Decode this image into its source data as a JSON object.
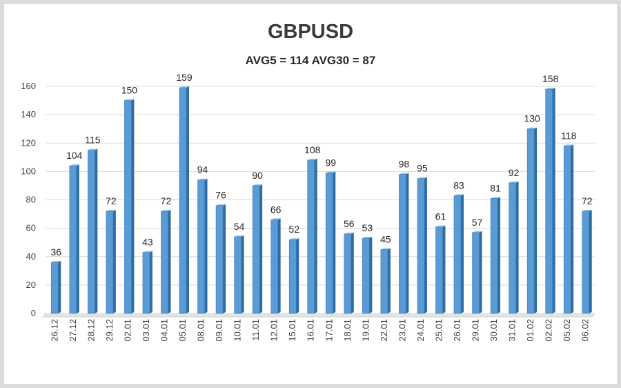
{
  "chart_data": {
    "type": "bar",
    "title": "GBPUSD",
    "subtitle": "AVG5 = 114 AVG30 = 87",
    "categories": [
      "26.12",
      "27.12",
      "28.12",
      "29.12",
      "02.01",
      "03.01",
      "04.01",
      "05.01",
      "08.01",
      "09.01",
      "10.01",
      "11.01",
      "12.01",
      "15.01",
      "16.01",
      "17.01",
      "18.01",
      "19.01",
      "22.01",
      "23.01",
      "24.01",
      "25.01",
      "26.01",
      "29.01",
      "30.01",
      "31.01",
      "01.02",
      "02.02",
      "05.02",
      "06.02"
    ],
    "values": [
      36,
      104,
      115,
      72,
      150,
      43,
      72,
      159,
      94,
      76,
      54,
      90,
      66,
      52,
      108,
      99,
      56,
      53,
      45,
      98,
      95,
      61,
      83,
      57,
      81,
      92,
      130,
      158,
      118,
      72
    ],
    "ylim": [
      0,
      160
    ],
    "yticks": [
      0,
      20,
      40,
      60,
      80,
      100,
      120,
      140,
      160
    ],
    "grid": true,
    "legend": "none",
    "colors": {
      "bar_front": "#5b9bd5",
      "bar_side": "#2e6da4",
      "bar_top": "#9cc3e6",
      "grid": "#d9d9d9"
    }
  }
}
